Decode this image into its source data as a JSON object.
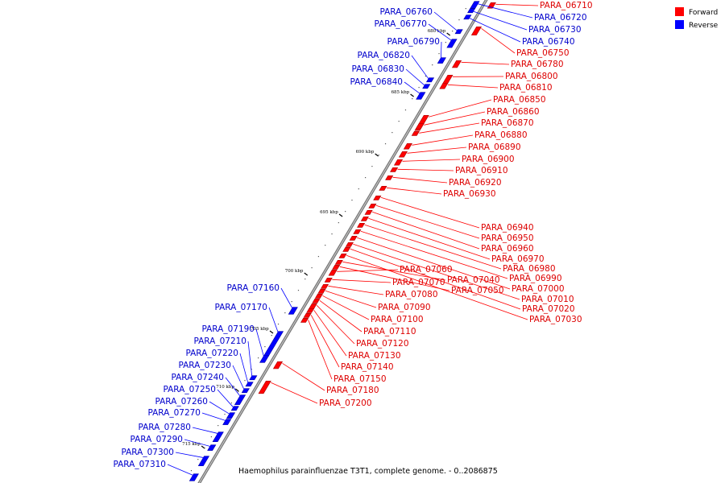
{
  "legend": {
    "forward_label": "Forward",
    "reverse_label": "Reverse",
    "forward_color": "#ff0000",
    "reverse_color": "#0000ff"
  },
  "caption": "Haemophilus parainfluenzae T3T1, complete genome. - 0..2086875",
  "ticks": [
    "680 kbp",
    "685 kbp",
    "690 kbp",
    "695 kbp",
    "700 kbp",
    "705 kbp",
    "710 kbp",
    "715 kbp"
  ],
  "forward_labels": [
    "PARA_06710",
    "PARA_06750",
    "PARA_06780",
    "PARA_06800",
    "PARA_06810",
    "PARA_06850",
    "PARA_06860",
    "PARA_06870",
    "PARA_06880",
    "PARA_06890",
    "PARA_06900",
    "PARA_06910",
    "PARA_06920",
    "PARA_06930",
    "PARA_06940",
    "PARA_06950",
    "PARA_06960",
    "PARA_06970",
    "PARA_06980",
    "PARA_06990",
    "PARA_07000",
    "PARA_07010",
    "PARA_07020",
    "PARA_07030",
    "PARA_07040",
    "PARA_07050",
    "PARA_07060",
    "PARA_07070",
    "PARA_07080",
    "PARA_07090",
    "PARA_07100",
    "PARA_07110",
    "PARA_07120",
    "PARA_07130",
    "PARA_07140",
    "PARA_07150",
    "PARA_07180",
    "PARA_07200"
  ],
  "reverse_labels": [
    "PARA_06720",
    "PARA_06730",
    "PARA_06740",
    "PARA_06760",
    "PARA_06770",
    "PARA_06790",
    "PARA_06820",
    "PARA_06830",
    "PARA_06840",
    "PARA_07160",
    "PARA_07170",
    "PARA_07190",
    "PARA_07210",
    "PARA_07220",
    "PARA_07230",
    "PARA_07240",
    "PARA_07250",
    "PARA_07260",
    "PARA_07270",
    "PARA_07280",
    "PARA_07290",
    "PARA_07300",
    "PARA_07310"
  ]
}
